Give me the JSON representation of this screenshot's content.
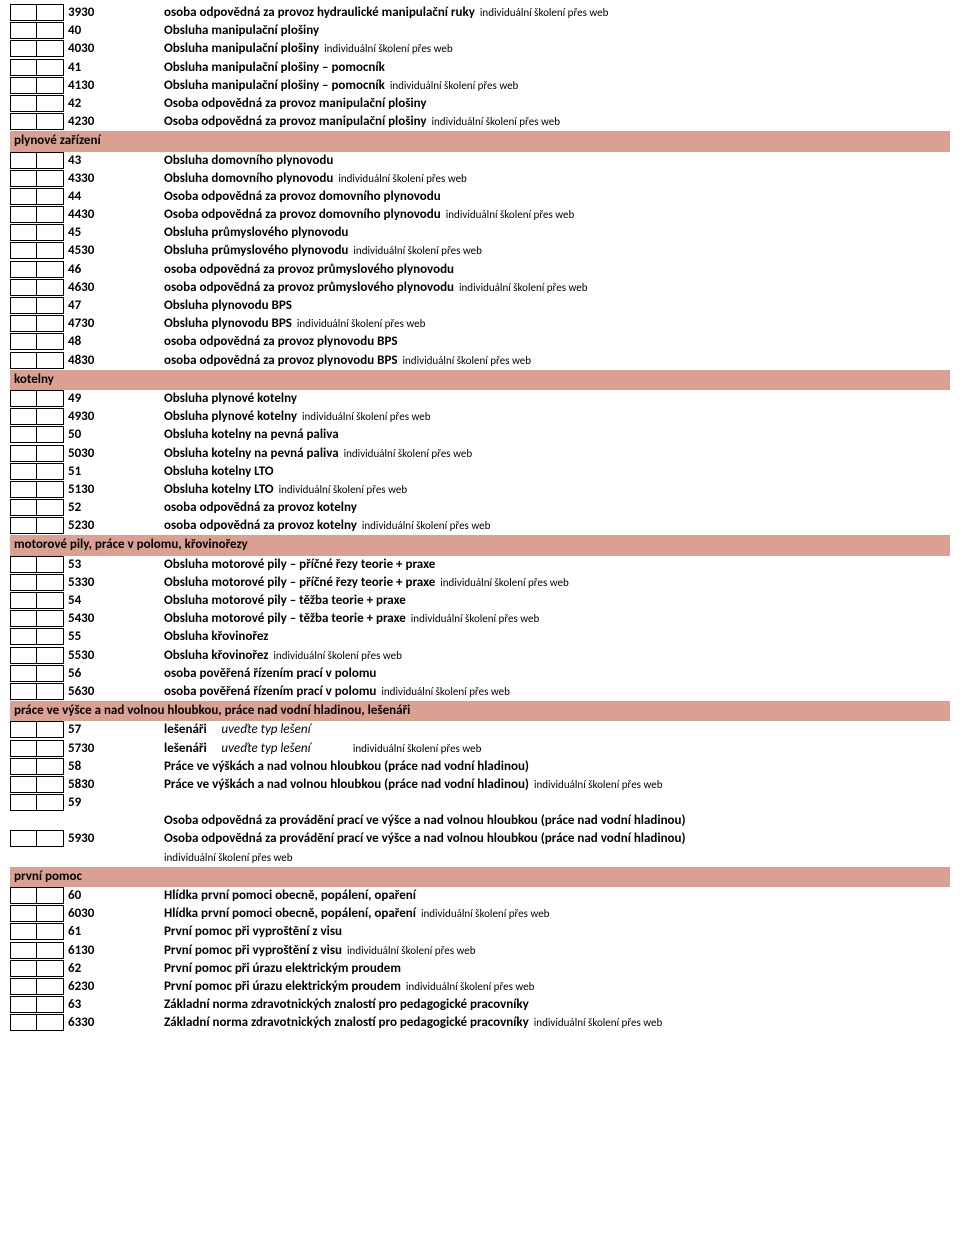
{
  "note_text": "individuální školení přes web",
  "sections": [
    {
      "title": null,
      "rows": [
        {
          "code": "3930",
          "desc": "osoba odpovědná za provoz hydraulické manipulační ruky",
          "note": true
        },
        {
          "code": "40",
          "desc": "Obsluha manipulační plošiny"
        },
        {
          "code": "4030",
          "desc": "Obsluha manipulační plošiny",
          "note": true
        },
        {
          "code": "41",
          "desc": "Obsluha manipulační plošiny – pomocník"
        },
        {
          "code": "4130",
          "desc": "Obsluha manipulační plošiny – pomocník",
          "note": true
        },
        {
          "code": "42",
          "desc": "Osoba odpovědná za provoz manipulační plošiny"
        },
        {
          "code": "4230",
          "desc": "Osoba odpovědná za provoz manipulační plošiny",
          "note": true
        }
      ]
    },
    {
      "title": "plynové zařízení",
      "rows": [
        {
          "code": "43",
          "desc": "Obsluha domovního plynovodu"
        },
        {
          "code": "4330",
          "desc": "Obsluha domovního plynovodu",
          "note": true
        },
        {
          "code": "44",
          "desc": "Osoba odpovědná za provoz domovního plynovodu"
        },
        {
          "code": "4430",
          "desc": "Osoba odpovědná za provoz domovního plynovodu",
          "note": true
        },
        {
          "code": "45",
          "desc": "Obsluha průmyslového plynovodu"
        },
        {
          "code": "4530",
          "desc": "Obsluha průmyslového plynovodu",
          "note": true
        },
        {
          "code": "46",
          "desc": "osoba odpovědná za provoz průmyslového plynovodu"
        },
        {
          "code": "4630",
          "desc": "osoba odpovědná za provoz průmyslového plynovodu",
          "note": true
        },
        {
          "code": "47",
          "desc": "Obsluha plynovodu BPS"
        },
        {
          "code": "4730",
          "desc": "Obsluha plynovodu BPS",
          "note": true
        },
        {
          "code": "48",
          "desc": "osoba odpovědná za provoz plynovodu BPS"
        },
        {
          "code": "4830",
          "desc": "osoba odpovědná za provoz plynovodu BPS",
          "note": true
        }
      ]
    },
    {
      "title": "kotelny",
      "rows": [
        {
          "code": "49",
          "desc": "Obsluha plynové kotelny"
        },
        {
          "code": "4930",
          "desc": "Obsluha plynové kotelny",
          "note": true
        },
        {
          "code": "50",
          "desc": "Obsluha kotelny na pevná paliva"
        },
        {
          "code": "5030",
          "desc": "Obsluha kotelny na pevná paliva",
          "note": true
        },
        {
          "code": "51",
          "desc": "Obsluha kotelny LTO"
        },
        {
          "code": "5130",
          "desc": "Obsluha kotelny LTO",
          "note": true
        },
        {
          "code": "52",
          "desc": "osoba odpovědná za provoz kotelny"
        },
        {
          "code": "5230",
          "desc": "osoba odpovědná za provoz kotelny",
          "note": true
        }
      ]
    },
    {
      "title": "motorové pily, práce v polomu, křovinořezy",
      "rows": [
        {
          "code": "53",
          "desc": "Obsluha motorové pily – příčné řezy teorie + praxe"
        },
        {
          "code": "5330",
          "desc": "Obsluha motorové pily – příčné řezy teorie + praxe",
          "note": true
        },
        {
          "code": "54",
          "desc": "Obsluha motorové pily – těžba teorie + praxe"
        },
        {
          "code": "5430",
          "desc": "Obsluha motorové pily – těžba teorie + praxe",
          "note": true
        },
        {
          "code": "55",
          "desc": "Obsluha křovinořez"
        },
        {
          "code": "5530",
          "desc": "Obsluha křovinořez",
          "note": true
        },
        {
          "code": "56",
          "desc": "osoba pověřená řízením  prací v polomu"
        },
        {
          "code": "5630",
          "desc": "osoba pověřená řízením  prací v polomu",
          "note": true
        }
      ]
    },
    {
      "title": "práce ve výšce  a nad volnou hloubkou, práce nad vodní hladinou, lešenáři",
      "rows": [
        {
          "code": "57",
          "desc": "lešenáři",
          "italic": "uveďte typ lešení"
        },
        {
          "code": "5730",
          "desc": "lešenáři",
          "italic": "uveďte typ lešení",
          "note": true,
          "note_spaced": true
        },
        {
          "code": "58",
          "desc": "Práce ve výškách a nad volnou hloubkou (práce nad vodní hladinou)"
        },
        {
          "code": "5830",
          "desc": "Práce ve výškách a nad volnou hloubkou (práce nad vodní hladinou)",
          "note": true
        },
        {
          "code": "59",
          "desc": ""
        },
        {
          "code": "",
          "desc": "Osoba odpovědná za provádění prací ve výšce a nad volnou hloubkou (práce nad vodní hladinou)",
          "nocheckbox": true
        },
        {
          "code": "5930",
          "desc": "Osoba odpovědná za provádění prací ve výšce a nad volnou hloubkou (práce nad vodní hladinou)",
          "note_below": true
        }
      ]
    },
    {
      "title": "první pomoc",
      "rows": [
        {
          "code": "60",
          "desc": "Hlídka první pomoci obecně, popálení, opaření"
        },
        {
          "code": "6030",
          "desc": "Hlídka první pomoci obecně, popálení, opaření",
          "note": true
        },
        {
          "code": "61",
          "desc": "První pomoc při vyproštění z visu"
        },
        {
          "code": "6130",
          "desc": "První pomoc při vyproštění z visu",
          "note": true
        },
        {
          "code": "62",
          "desc": "První pomoc při úrazu elektrickým  proudem"
        },
        {
          "code": "6230",
          "desc": "První pomoc při úrazu elektrickým  proudem",
          "note": true
        },
        {
          "code": "63",
          "desc": "Základní norma zdravotnických znalostí pro pedagogické pracovníky"
        },
        {
          "code": "6330",
          "desc": "Základní norma zdravotnických znalostí pro pedagogické pracovníky",
          "note": true
        }
      ]
    }
  ]
}
